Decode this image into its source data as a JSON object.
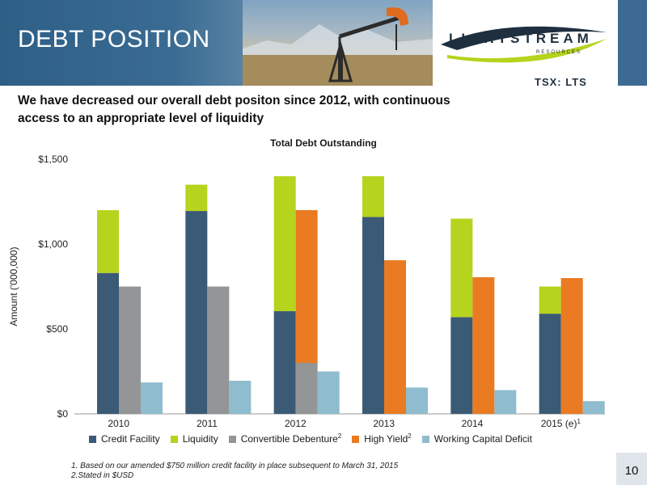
{
  "header": {
    "title": "DEBT POSITION",
    "logo_text": "LIGHTSTREAM",
    "logo_sub": "RESOURCES",
    "ticker": "TSX: LTS"
  },
  "subtitle": "We have decreased our overall debt positon since 2012, with continuous access to an appropriate level of liquidity",
  "chart_data": {
    "type": "bar",
    "title": "Total Debt Outstanding",
    "ylabel": "Amount ('000,000)",
    "xlabel": "",
    "ylim": [
      0,
      1500
    ],
    "yticks": [
      "$0",
      "$500",
      "$1,000",
      "$1,500"
    ],
    "ytick_values": [
      0,
      500,
      1000,
      1500
    ],
    "grid": false,
    "legend_position": "bottom",
    "categories": [
      {
        "label": "2010",
        "sup": ""
      },
      {
        "label": "2011",
        "sup": ""
      },
      {
        "label": "2012",
        "sup": ""
      },
      {
        "label": "2013",
        "sup": ""
      },
      {
        "label": "2014",
        "sup": ""
      },
      {
        "label": "2015 (e)",
        "sup": "1"
      }
    ],
    "stacked_bar_1": [
      {
        "name": "Credit Facility",
        "values": [
          830,
          1195,
          605,
          1160,
          570,
          590
        ]
      },
      {
        "name": "Liquidity",
        "values": [
          370,
          155,
          795,
          240,
          580,
          160
        ]
      }
    ],
    "stacked_bar_2": [
      {
        "name": "Convertible Debenture",
        "values": [
          750,
          750,
          300,
          0,
          0,
          0
        ]
      },
      {
        "name": "High Yield",
        "values": [
          0,
          0,
          900,
          905,
          805,
          800
        ]
      }
    ],
    "bar_3": [
      {
        "name": "Working Capital Deficit",
        "values": [
          185,
          195,
          250,
          155,
          140,
          75
        ]
      }
    ],
    "legend": [
      {
        "name": "Credit Facility",
        "sup": ""
      },
      {
        "name": "Liquidity",
        "sup": ""
      },
      {
        "name": "Convertible Debenture",
        "sup": "2"
      },
      {
        "name": "High Yield",
        "sup": "2"
      },
      {
        "name": "Working Capital Deficit",
        "sup": ""
      }
    ],
    "colors": {
      "Credit Facility": "#3b5a75",
      "Liquidity": "#b6d31d",
      "Convertible Debenture": "#939597",
      "High Yield": "#ea7b22",
      "Working Capital Deficit": "#8fbcce"
    }
  },
  "footnotes": [
    "1. Based on our amended $750 million credit facility in place subsequent to March 31, 2015",
    "2.Stated  in $USD"
  ],
  "page_number": "10"
}
